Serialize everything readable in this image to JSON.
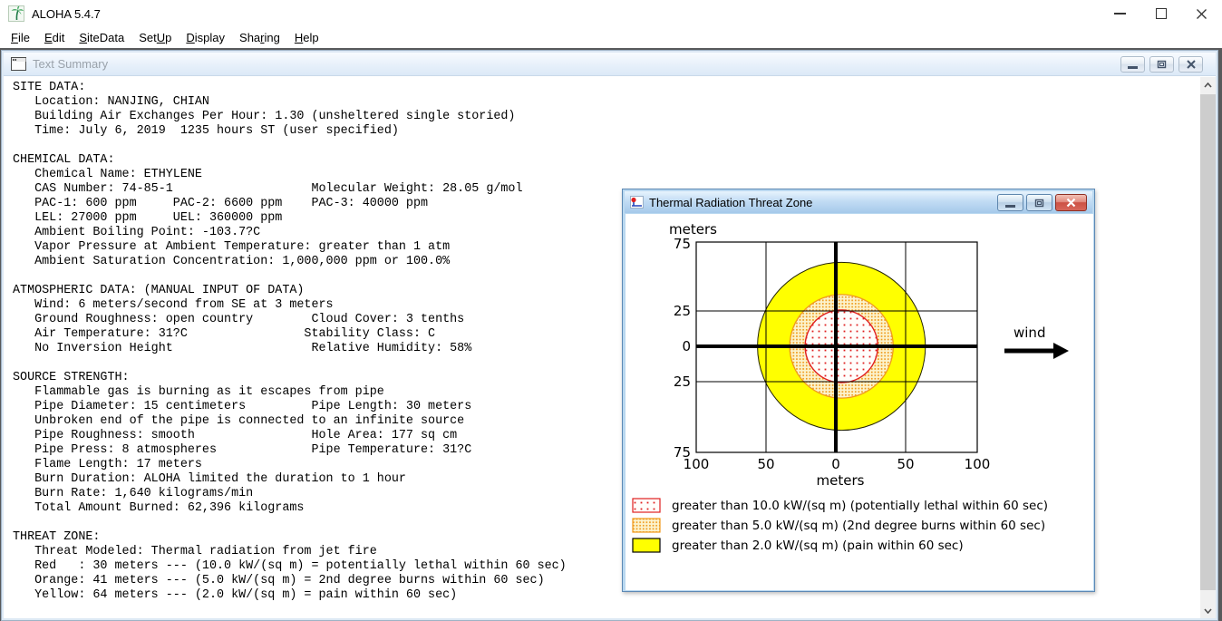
{
  "window": {
    "title": "ALOHA 5.4.7",
    "controls": {
      "minimize": "minimize",
      "maximize": "maximize",
      "close": "close"
    }
  },
  "menubar": {
    "items": [
      {
        "label": "File",
        "pre": "",
        "u": "F",
        "post": "ile"
      },
      {
        "label": "Edit",
        "pre": "",
        "u": "E",
        "post": "dit"
      },
      {
        "label": "SiteData",
        "pre": "",
        "u": "S",
        "post": "iteData"
      },
      {
        "label": "SetUp",
        "pre": "Set",
        "u": "U",
        "post": "p"
      },
      {
        "label": "Display",
        "pre": "",
        "u": "D",
        "post": "isplay"
      },
      {
        "label": "Sharing",
        "pre": "Sha",
        "u": "r",
        "post": "ing"
      },
      {
        "label": "Help",
        "pre": "",
        "u": "H",
        "post": "elp"
      }
    ]
  },
  "text_summary_window": {
    "title": "Text Summary",
    "lines": [
      "SITE DATA:",
      "   Location: NANJING, CHIAN",
      "   Building Air Exchanges Per Hour: 1.30 (unsheltered single storied)",
      "   Time: July 6, 2019  1235 hours ST (user specified)",
      "",
      "CHEMICAL DATA:",
      "   Chemical Name: ETHYLENE",
      "   CAS Number: 74-85-1                   Molecular Weight: 28.05 g/mol",
      "   PAC-1: 600 ppm     PAC-2: 6600 ppm    PAC-3: 40000 ppm",
      "   LEL: 27000 ppm     UEL: 360000 ppm",
      "   Ambient Boiling Point: -103.7?C",
      "   Vapor Pressure at Ambient Temperature: greater than 1 atm",
      "   Ambient Saturation Concentration: 1,000,000 ppm or 100.0%",
      "",
      "ATMOSPHERIC DATA: (MANUAL INPUT OF DATA)",
      "   Wind: 6 meters/second from SE at 3 meters",
      "   Ground Roughness: open country        Cloud Cover: 3 tenths",
      "   Air Temperature: 31?C                Stability Class: C",
      "   No Inversion Height                   Relative Humidity: 58%",
      "",
      "SOURCE STRENGTH:",
      "   Flammable gas is burning as it escapes from pipe",
      "   Pipe Diameter: 15 centimeters         Pipe Length: 30 meters",
      "   Unbroken end of the pipe is connected to an infinite source",
      "   Pipe Roughness: smooth                Hole Area: 177 sq cm",
      "   Pipe Press: 8 atmospheres             Pipe Temperature: 31?C",
      "   Flame Length: 17 meters",
      "   Burn Duration: ALOHA limited the duration to 1 hour",
      "   Burn Rate: 1,640 kilograms/min",
      "   Total Amount Burned: 62,396 kilograms",
      "",
      "THREAT ZONE:",
      "   Threat Modeled: Thermal radiation from jet fire",
      "   Red   : 30 meters --- (10.0 kW/(sq m) = potentially lethal within 60 sec)",
      "   Orange: 41 meters --- (5.0 kW/(sq m) = 2nd degree burns within 60 sec)",
      "   Yellow: 64 meters --- (2.0 kW/(sq m) = pain within 60 sec)"
    ]
  },
  "threat_window": {
    "title": "Thermal Radiation Threat Zone",
    "wind_label": "wind",
    "legend": [
      {
        "swatch": "red-dotted",
        "label": "greater than 10.0 kW/(sq m) (potentially lethal within 60 sec)"
      },
      {
        "swatch": "orange-dotted",
        "label": "greater than 5.0 kW/(sq m) (2nd degree burns within 60 sec)"
      },
      {
        "swatch": "yellow-solid",
        "label": "greater than 2.0 kW/(sq m) (pain within 60 sec)"
      }
    ]
  },
  "chart_data": {
    "type": "threat-zone-rings",
    "title": "Thermal Radiation Threat Zone",
    "xlabel": "meters",
    "ylabel": "meters",
    "xlim": [
      -100,
      100
    ],
    "ylim": [
      -75,
      75
    ],
    "x_tick_labels": [
      "100",
      "50",
      "0",
      "50",
      "100"
    ],
    "y_tick_labels": [
      "75",
      "25",
      "0",
      "25",
      "75"
    ],
    "grid_x_m": [
      -50,
      0,
      50
    ],
    "grid_y_m": [
      -25,
      0,
      25
    ],
    "center_offset_m": 4,
    "zones": [
      {
        "name": "yellow",
        "distance_m": 64,
        "threshold": "2.0 kW/(sq m)",
        "effect": "pain within 60 sec",
        "color": "#ffff00"
      },
      {
        "name": "orange",
        "distance_m": 41,
        "threshold": "5.0 kW/(sq m)",
        "effect": "2nd degree burns within 60 sec",
        "color": "#f09a1d"
      },
      {
        "name": "red",
        "distance_m": 30,
        "threshold": "10.0 kW/(sq m)",
        "effect": "potentially lethal within 60 sec",
        "color": "#e02020"
      }
    ],
    "wind": "blowing toward +x (arrow points right)"
  },
  "colors": {
    "zone_yellow": "#ffff00",
    "zone_orange_dot": "#f09a1d",
    "zone_red_dot": "#e02020",
    "active_titlebar": "#b9d8f0",
    "close_button_red": "#cc5144",
    "scrollbar_thumb": "#cdcdcd",
    "mdi_background": "#58595b"
  }
}
